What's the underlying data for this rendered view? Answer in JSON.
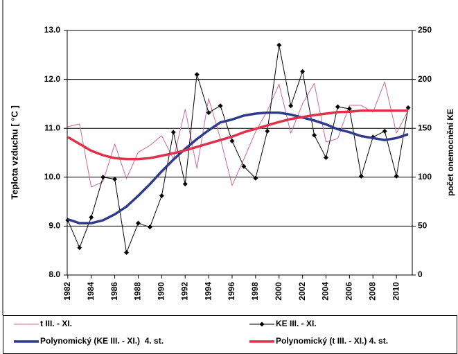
{
  "chart_data": {
    "type": "line",
    "y_label": "Teplota vzduchu [ °C ]",
    "y2_label": "počet onemocnění KE",
    "x": [
      1982,
      1983,
      1984,
      1985,
      1986,
      1987,
      1988,
      1989,
      1990,
      1991,
      1992,
      1993,
      1994,
      1995,
      1996,
      1997,
      1998,
      1999,
      2000,
      2001,
      2002,
      2003,
      2004,
      2005,
      2006,
      2007,
      2008,
      2009,
      2010,
      2011
    ],
    "xlim": [
      1981.95,
      2011.35
    ],
    "xticks": [
      1982,
      1984,
      1986,
      1988,
      1990,
      1992,
      1994,
      1996,
      1998,
      2000,
      2002,
      2004,
      2006,
      2008,
      2010
    ],
    "ylim": [
      8,
      13
    ],
    "yticks": [
      {
        "value": 8,
        "label": "8.0"
      },
      {
        "value": 9,
        "label": "9.0"
      },
      {
        "value": 10,
        "label": "10.0"
      },
      {
        "value": 11,
        "label": "11.0"
      },
      {
        "value": 12,
        "label": "12.0"
      },
      {
        "value": 13,
        "label": "13.0"
      }
    ],
    "y2lim": [
      0,
      250
    ],
    "y2ticks": [
      0,
      50,
      100,
      150,
      200,
      250
    ],
    "grid": true,
    "legend": "bottom",
    "series": [
      {
        "name": "t III. - XI.",
        "color": "#cc6699",
        "width": 1,
        "axis": "y",
        "values": [
          11.03,
          11.09,
          9.8,
          9.91,
          10.68,
          9.97,
          10.51,
          10.65,
          10.85,
          10.37,
          11.39,
          10.18,
          11.61,
          10.79,
          9.83,
          10.37,
          10.93,
          11.36,
          11.9,
          10.9,
          11.5,
          11.92,
          10.72,
          10.79,
          11.47,
          11.47,
          11.33,
          11.95,
          10.9,
          11.36
        ]
      },
      {
        "name": "KE III. - XI.",
        "color": "#000000",
        "width": 1,
        "axis": "y2",
        "marker": "diamond",
        "values": [
          56,
          28,
          59,
          100,
          98,
          23,
          53,
          49,
          81,
          146,
          93,
          205,
          166,
          173,
          137,
          111,
          99,
          147,
          235,
          173,
          208,
          143,
          120,
          172,
          170,
          101,
          141,
          147,
          101,
          171
        ]
      },
      {
        "name": "Polynomický (KE III. - XI.)  4. st.",
        "color": "#2e3a8c",
        "width": 3.5,
        "axis": "y2",
        "values": [
          57,
          53,
          53,
          56,
          62,
          70,
          81,
          93,
          106,
          118,
          129,
          139,
          148,
          156,
          159,
          163,
          165,
          166,
          166,
          164,
          161,
          158,
          154,
          149,
          146,
          142,
          140,
          138,
          140,
          144
        ]
      },
      {
        "name": "Polynomický (t III. - XI.) 4. st.",
        "color": "#e0304a",
        "width": 3.5,
        "axis": "y",
        "values": [
          10.82,
          10.68,
          10.54,
          10.45,
          10.39,
          10.37,
          10.37,
          10.39,
          10.44,
          10.49,
          10.55,
          10.62,
          10.69,
          10.76,
          10.83,
          10.92,
          10.99,
          11.06,
          11.13,
          11.19,
          11.23,
          11.27,
          11.3,
          11.33,
          11.34,
          11.36,
          11.36,
          11.36,
          11.36,
          11.36
        ]
      }
    ]
  }
}
